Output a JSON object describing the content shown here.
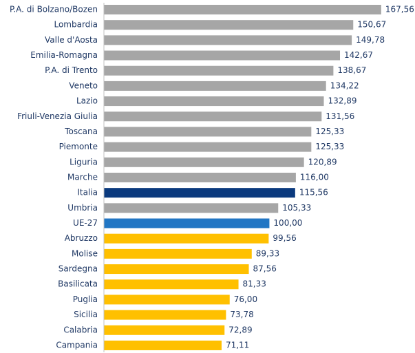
{
  "chart_data": {
    "type": "bar",
    "orientation": "horizontal",
    "categories": [
      "P.A. di Bolzano/Bozen",
      "Lombardia",
      "Valle d'Aosta",
      "Emilia-Romagna",
      "P.A. di Trento",
      "Veneto",
      "Lazio",
      "Friuli-Venezia Giulia",
      "Toscana",
      "Piemonte",
      "Liguria",
      "Marche",
      "Italia",
      "Umbria",
      "UE-27",
      "Abruzzo",
      "Molise",
      "Sardegna",
      "Basilicata",
      "Puglia",
      "Sicilia",
      "Calabria",
      "Campania"
    ],
    "values": [
      167.56,
      150.67,
      149.78,
      142.67,
      138.67,
      134.22,
      132.89,
      131.56,
      125.33,
      125.33,
      120.89,
      116.0,
      115.56,
      105.33,
      100.0,
      99.56,
      89.33,
      87.56,
      81.33,
      76.0,
      73.78,
      72.89,
      71.11
    ],
    "value_labels": [
      "167,56",
      "150,67",
      "149,78",
      "142,67",
      "138,67",
      "134,22",
      "132,89",
      "131,56",
      "125,33",
      "125,33",
      "120,89",
      "116,00",
      "115,56",
      "105,33",
      "100,00",
      "99,56",
      "89,33",
      "87,56",
      "81,33",
      "76,00",
      "73,78",
      "72,89",
      "71,11"
    ],
    "colors": [
      "#a6a6a6",
      "#a6a6a6",
      "#a6a6a6",
      "#a6a6a6",
      "#a6a6a6",
      "#a6a6a6",
      "#a6a6a6",
      "#a6a6a6",
      "#a6a6a6",
      "#a6a6a6",
      "#a6a6a6",
      "#a6a6a6",
      "#0b3a7e",
      "#a6a6a6",
      "#2176c4",
      "#ffc000",
      "#ffc000",
      "#ffc000",
      "#ffc000",
      "#ffc000",
      "#ffc000",
      "#ffc000",
      "#ffc000"
    ],
    "xlim": [
      0,
      188
    ]
  }
}
